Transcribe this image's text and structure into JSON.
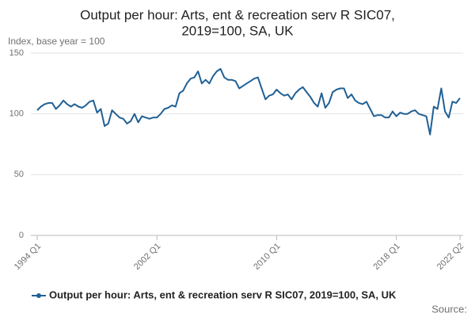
{
  "chart_data": {
    "type": "line",
    "title": [
      "Output per hour: Arts, ent & recreation serv R SIC07,",
      "2019=100, SA, UK"
    ],
    "y_label": "Index, base year = 100",
    "source": "Source:",
    "categories": [
      "1994 Q1",
      null,
      null,
      null,
      null,
      null,
      null,
      null,
      null,
      null,
      null,
      null,
      null,
      null,
      null,
      null,
      null,
      null,
      null,
      null,
      null,
      null,
      null,
      null,
      null,
      null,
      null,
      null,
      null,
      null,
      null,
      null,
      "2002 Q1",
      null,
      null,
      null,
      null,
      null,
      null,
      null,
      null,
      null,
      null,
      null,
      null,
      null,
      null,
      null,
      null,
      null,
      null,
      null,
      null,
      null,
      null,
      null,
      null,
      null,
      null,
      null,
      null,
      null,
      null,
      null,
      "2010 Q1",
      null,
      null,
      null,
      null,
      null,
      null,
      null,
      null,
      null,
      null,
      null,
      null,
      null,
      null,
      null,
      null,
      null,
      null,
      null,
      null,
      null,
      null,
      null,
      null,
      null,
      null,
      null,
      null,
      null,
      null,
      null,
      "2018 Q1",
      null,
      null,
      null,
      null,
      null,
      null,
      null,
      null,
      null,
      null,
      null,
      null,
      null,
      null,
      null,
      null,
      "2022 Q2"
    ],
    "series": [
      {
        "name": "Output per hour: Arts, ent & recreation serv R SIC07, 2019=100, SA, UK",
        "color": "#206095",
        "values": [
          103,
          106,
          108,
          109,
          109,
          104,
          107,
          111,
          108,
          106,
          108,
          106,
          105,
          107,
          110,
          111,
          101,
          104,
          90,
          92,
          103,
          100,
          97,
          96,
          92,
          94,
          100,
          93,
          98,
          97,
          96,
          97,
          97,
          100,
          104,
          105,
          107,
          106,
          117,
          119,
          125,
          129,
          130,
          135,
          125,
          128,
          125,
          131,
          135,
          137,
          130,
          128,
          128,
          127,
          121,
          123,
          125,
          127,
          129,
          130,
          121,
          112,
          115,
          116,
          120,
          117,
          115,
          116,
          112,
          117,
          120,
          122,
          118,
          114,
          109,
          106,
          117,
          105,
          109,
          118,
          120,
          121,
          121,
          113,
          116,
          111,
          109,
          108,
          110,
          104,
          98,
          99,
          99,
          97,
          97,
          102,
          98,
          101,
          100,
          100,
          102,
          103,
          100,
          99,
          98,
          83,
          106,
          104,
          121,
          102,
          97,
          110,
          109,
          113
        ]
      }
    ],
    "ylim": [
      0,
      150
    ],
    "yticks": [
      0,
      50,
      100,
      150
    ],
    "grid": true
  }
}
